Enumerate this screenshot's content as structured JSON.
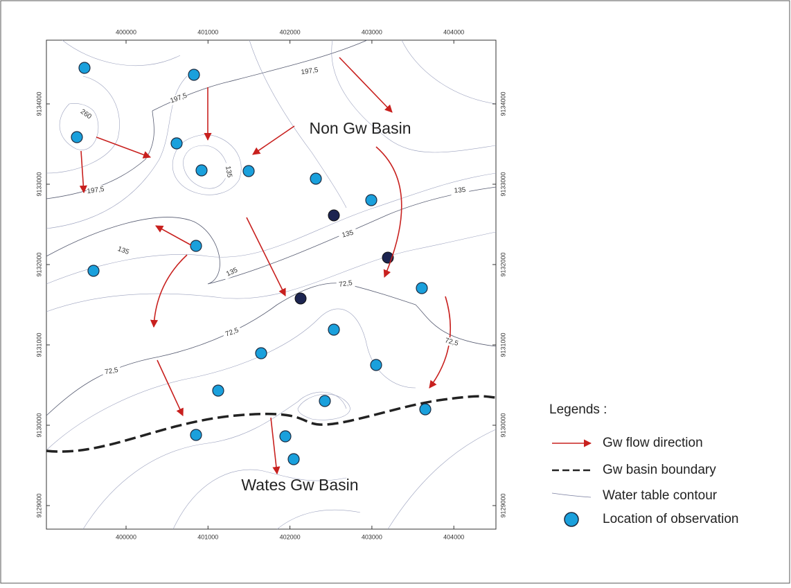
{
  "map": {
    "x_ticks": [
      "400000",
      "401000",
      "402000",
      "403000",
      "404000"
    ],
    "y_ticks": [
      "9134000",
      "9133000",
      "9132000",
      "9131000",
      "9130000",
      "9129000"
    ],
    "contour_labels": [
      "197,5",
      "197,5",
      "260",
      "135",
      "197,5",
      "135",
      "135",
      "135",
      "135",
      "72,5",
      "72,5",
      "72,5",
      "72,5"
    ],
    "annotations": [
      "Non Gw Basin",
      "Wates Gw Basin"
    ],
    "legend": {
      "title": "Legends :",
      "items": [
        "Gw flow direction",
        "Gw basin boundary",
        "Water table contour",
        "Location of observation"
      ]
    }
  }
}
